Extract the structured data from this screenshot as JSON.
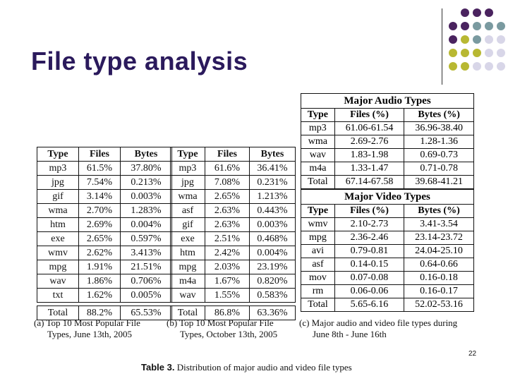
{
  "slide": {
    "title": "File type analysis",
    "page_number": "22",
    "colors": {
      "title": "#2b1a5c",
      "dot_purple": "#4a235f",
      "dot_teal": "#7a9aa0",
      "dot_olive": "#b8b832",
      "dot_lavender": "#d8d6e8"
    }
  },
  "table_a": {
    "headers": [
      "Type",
      "Files",
      "Bytes"
    ],
    "rows": [
      [
        "mp3",
        "61.5%",
        "37.80%"
      ],
      [
        "jpg",
        "7.54%",
        "0.213%"
      ],
      [
        "gif",
        "3.14%",
        "0.003%"
      ],
      [
        "wma",
        "2.70%",
        "1.283%"
      ],
      [
        "htm",
        "2.69%",
        "0.004%"
      ],
      [
        "exe",
        "2.65%",
        "0.597%"
      ],
      [
        "wmv",
        "2.62%",
        "3.413%"
      ],
      [
        "mpg",
        "1.91%",
        "21.51%"
      ],
      [
        "wav",
        "1.86%",
        "0.706%"
      ],
      [
        "txt",
        "1.62%",
        "0.005%"
      ]
    ],
    "total": [
      "Total",
      "88.2%",
      "65.53%"
    ],
    "caption": [
      "(a)  Top 10 Most Popular File",
      "Types, June 13th, 2005"
    ]
  },
  "table_b": {
    "headers": [
      "Type",
      "Files",
      "Bytes"
    ],
    "rows": [
      [
        "mp3",
        "61.6%",
        "36.41%"
      ],
      [
        "jpg",
        "7.08%",
        "0.231%"
      ],
      [
        "wma",
        "2.65%",
        "1.213%"
      ],
      [
        "asf",
        "2.63%",
        "0.443%"
      ],
      [
        "gif",
        "2.63%",
        "0.003%"
      ],
      [
        "exe",
        "2.51%",
        "0.468%"
      ],
      [
        "htm",
        "2.42%",
        "0.004%"
      ],
      [
        "mpg",
        "2.03%",
        "23.19%"
      ],
      [
        "m4a",
        "1.67%",
        "0.820%"
      ],
      [
        "wav",
        "1.55%",
        "0.583%"
      ]
    ],
    "total": [
      "Total",
      "86.8%",
      "63.36%"
    ],
    "caption": [
      "(b)  Top 10 Most Popular File",
      "Types, October 13th, 2005"
    ]
  },
  "table_c": {
    "audio": {
      "title": "Major Audio Types",
      "headers": [
        "Type",
        "Files (%)",
        "Bytes (%)"
      ],
      "rows": [
        [
          "mp3",
          "61.06-61.54",
          "36.96-38.40"
        ],
        [
          "wma",
          "2.69-2.76",
          "1.28-1.36"
        ],
        [
          "wav",
          "1.83-1.98",
          "0.69-0.73"
        ],
        [
          "m4a",
          "1.33-1.47",
          "0.71-0.78"
        ],
        [
          "Total",
          "67.14-67.58",
          "39.68-41.21"
        ]
      ]
    },
    "video": {
      "title": "Major Video Types",
      "headers": [
        "Type",
        "Files (%)",
        "Bytes (%)"
      ],
      "rows": [
        [
          "wmv",
          "2.10-2.73",
          "3.41-3.54"
        ],
        [
          "mpg",
          "2.36-2.46",
          "23.14-23.72"
        ],
        [
          "avi",
          "0.79-0.81",
          "24.04-25.10"
        ],
        [
          "asf",
          "0.14-0.15",
          "0.64-0.66"
        ],
        [
          "mov",
          "0.07-0.08",
          "0.16-0.18"
        ],
        [
          "rm",
          "0.06-0.06",
          "0.16-0.17"
        ],
        [
          "Total",
          "5.65-6.16",
          "52.02-53.16"
        ]
      ]
    },
    "caption": [
      "(c)  Major audio and video file types during",
      "June 8th - June 16th"
    ]
  },
  "table_caption": {
    "label": "Table 3.",
    "text": " Distribution of major audio and video file types"
  }
}
